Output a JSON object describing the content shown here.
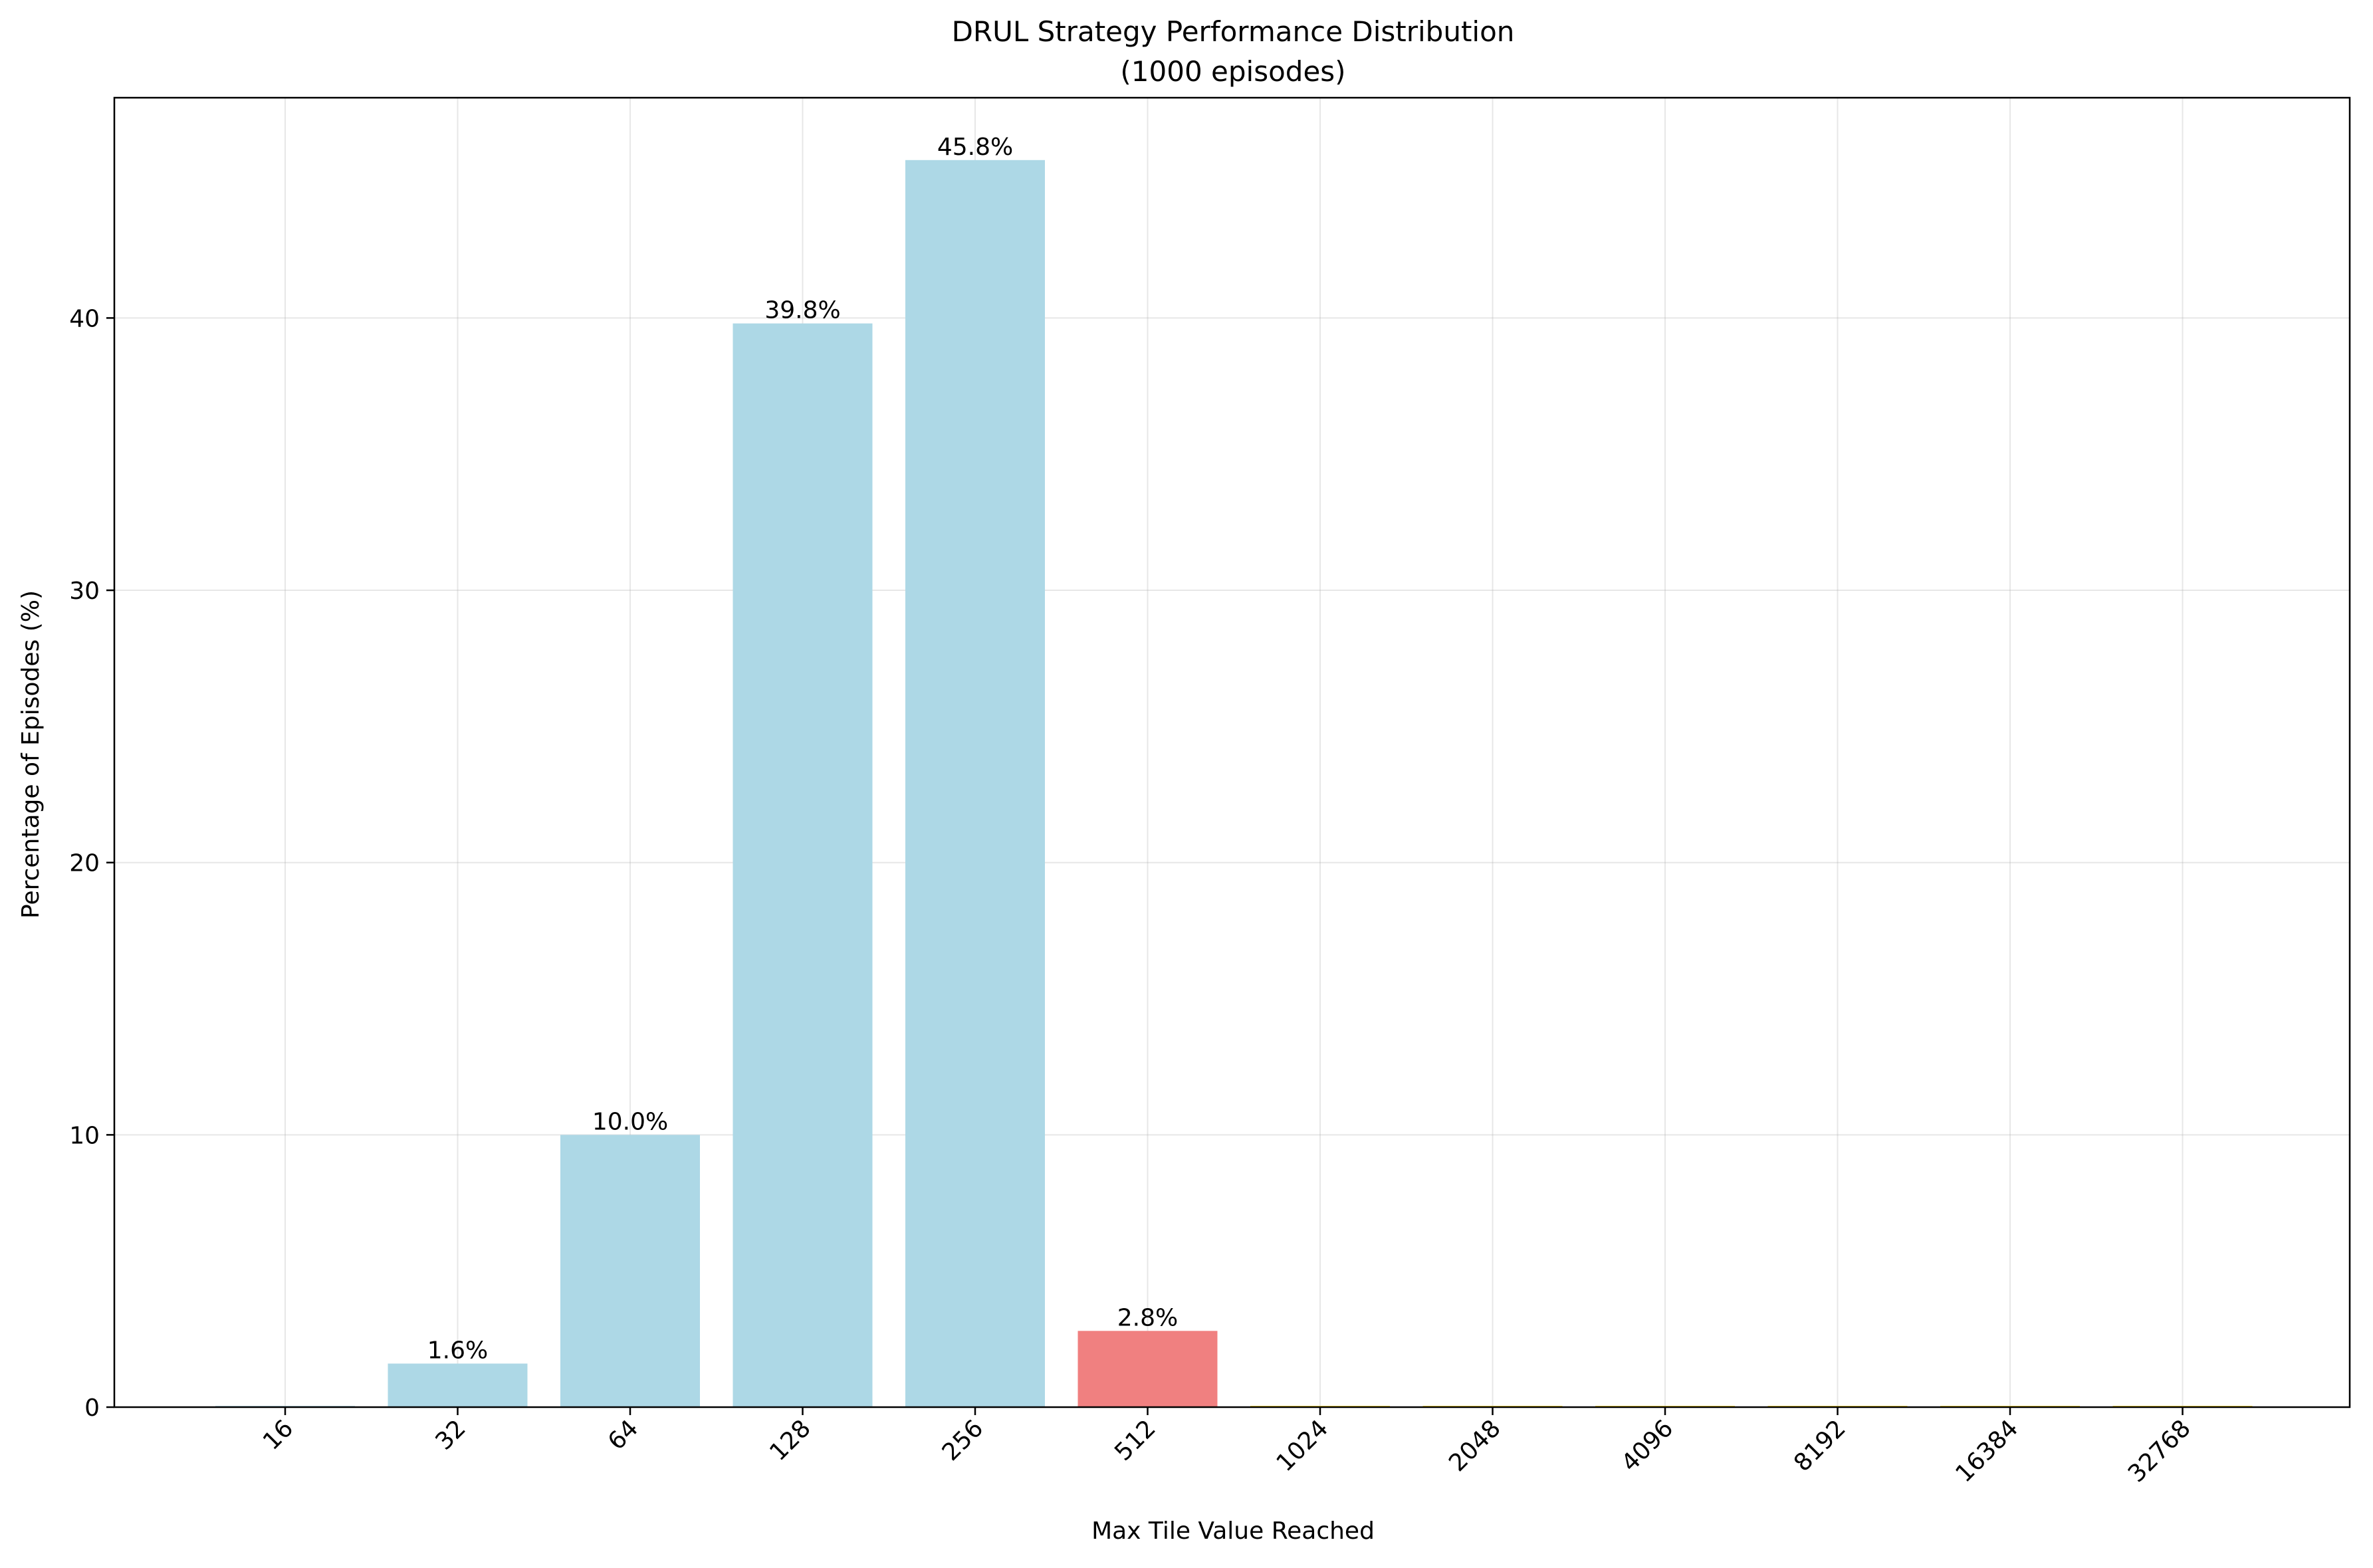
{
  "chart_data": {
    "type": "bar",
    "title": "DRUL Strategy Performance Distribution",
    "subtitle": "(1000 episodes)",
    "xlabel": "Max Tile Value Reached",
    "ylabel": "Percentage of Episodes (%)",
    "categories": [
      "16",
      "32",
      "64",
      "128",
      "256",
      "512",
      "1024",
      "2048",
      "4096",
      "8192",
      "16384",
      "32768"
    ],
    "values": [
      0,
      1.6,
      10.0,
      39.8,
      45.8,
      2.8,
      0,
      0,
      0,
      0,
      0,
      0
    ],
    "data_labels": [
      "",
      "1.6%",
      "10.0%",
      "39.8%",
      "45.8%",
      "2.8%",
      "",
      "",
      "",
      "",
      "",
      ""
    ],
    "bar_colors": [
      "#add8e6",
      "#add8e6",
      "#add8e6",
      "#add8e6",
      "#add8e6",
      "#f08080",
      "#ffd700",
      "#ffd700",
      "#ffd700",
      "#ffd700",
      "#ffd700",
      "#ffd700"
    ],
    "ylim": [
      0,
      48.09
    ],
    "yticks": [
      0,
      10,
      20,
      30,
      40
    ],
    "ytick_labels": [
      "0",
      "10",
      "20",
      "30",
      "40"
    ],
    "grid": true,
    "legend": "none"
  }
}
